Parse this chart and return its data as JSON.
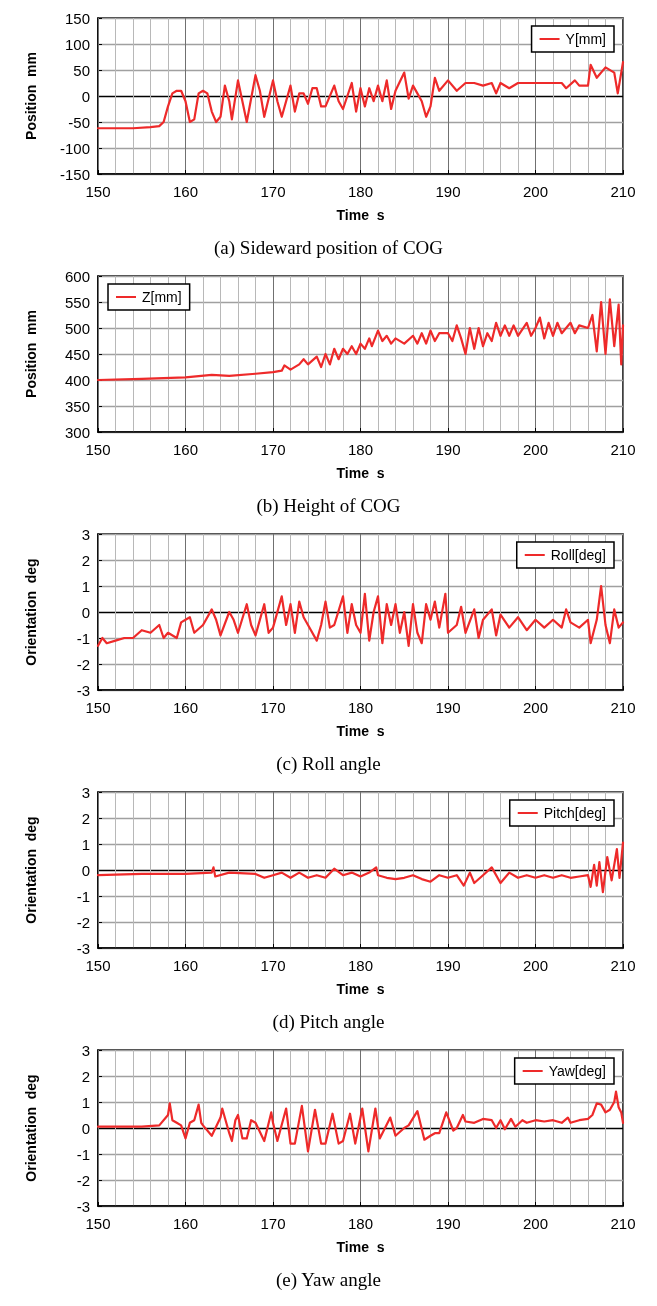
{
  "chart_data": [
    {
      "type": "line",
      "title": "(a) Sideward position of COG",
      "xlabel": "Time  s",
      "ylabel": "Position  mm",
      "xlim": [
        150,
        210
      ],
      "xticks": [
        150,
        160,
        170,
        180,
        190,
        200,
        210
      ],
      "ylim": [
        -150,
        150
      ],
      "yticks": [
        -150,
        -100,
        -50,
        0,
        50,
        100,
        150
      ],
      "grid": true,
      "legend": "top right",
      "marker": "none",
      "line_style": "solid",
      "series": [
        {
          "name": "Y[mm]",
          "color": "#ee2a2a",
          "x": [
            150,
            152,
            154,
            156,
            157,
            157.5,
            158,
            158.5,
            159,
            159.5,
            160,
            160.5,
            161,
            161.5,
            162,
            162.5,
            163,
            163.5,
            164,
            164.5,
            165,
            165.3,
            166,
            166.5,
            167,
            168,
            168.5,
            169,
            170,
            170.5,
            171,
            172,
            172.5,
            173,
            173.5,
            174,
            174.5,
            175,
            175.5,
            176,
            177,
            177.5,
            178,
            179,
            179.5,
            180,
            180.5,
            181,
            181.5,
            182,
            182.5,
            183,
            183.5,
            184,
            185,
            185.5,
            186,
            186.5,
            187,
            187.5,
            188,
            188.5,
            189,
            190,
            191,
            192,
            193,
            194,
            195,
            195.5,
            196,
            197,
            198,
            200,
            201,
            203,
            203.5,
            204.5,
            205,
            206,
            206.3,
            207,
            208,
            209,
            209.4,
            210
          ],
          "values": [
            -62,
            -62,
            -62,
            -60,
            -58,
            -50,
            -20,
            5,
            10,
            10,
            -10,
            -50,
            -45,
            5,
            10,
            5,
            -30,
            -50,
            -40,
            20,
            -10,
            -45,
            30,
            -10,
            -50,
            40,
            10,
            -40,
            30,
            -10,
            -40,
            20,
            -30,
            5,
            5,
            -15,
            15,
            15,
            -20,
            -20,
            20,
            -10,
            -25,
            25,
            -30,
            15,
            -20,
            15,
            -10,
            20,
            -10,
            30,
            -25,
            10,
            45,
            -5,
            20,
            5,
            -10,
            -40,
            -20,
            35,
            10,
            30,
            10,
            25,
            25,
            20,
            25,
            5,
            25,
            15,
            25,
            25,
            25,
            25,
            15,
            30,
            20,
            20,
            60,
            35,
            55,
            45,
            5,
            65
          ]
        }
      ]
    },
    {
      "type": "line",
      "title": "(b) Height of COG",
      "xlabel": "Time  s",
      "ylabel": "Position  mm",
      "xlim": [
        150,
        210
      ],
      "xticks": [
        150,
        160,
        170,
        180,
        190,
        200,
        210
      ],
      "ylim": [
        300,
        600
      ],
      "yticks": [
        300,
        350,
        400,
        450,
        500,
        550,
        600
      ],
      "grid": true,
      "legend": "top left",
      "marker": "none",
      "line_style": "solid",
      "series": [
        {
          "name": "Z[mm]",
          "color": "#ee2a2a",
          "x": [
            150,
            155,
            160,
            163,
            165,
            168,
            170,
            171,
            171.3,
            172,
            173,
            173.5,
            174,
            175,
            175.5,
            176,
            176.5,
            177,
            177.5,
            178,
            178.5,
            179,
            179.5,
            180,
            180.5,
            181,
            181.3,
            182,
            182.5,
            183,
            183.5,
            184,
            185,
            186,
            186.5,
            187,
            187.5,
            188,
            188.5,
            189,
            190,
            190.5,
            191,
            191.5,
            192,
            192.5,
            193,
            193.5,
            194,
            194.5,
            195,
            195.5,
            196,
            196.5,
            197,
            197.5,
            198,
            199,
            199.5,
            200,
            200.5,
            201,
            201.5,
            202,
            202.5,
            203,
            204,
            204.5,
            205,
            206,
            206.5,
            207,
            207.5,
            208,
            208.5,
            209,
            209.5,
            209.8,
            210
          ],
          "values": [
            400,
            402,
            405,
            410,
            408,
            412,
            415,
            418,
            428,
            420,
            430,
            440,
            430,
            445,
            425,
            450,
            430,
            460,
            440,
            460,
            450,
            465,
            450,
            470,
            460,
            480,
            465,
            495,
            475,
            485,
            470,
            480,
            470,
            485,
            470,
            490,
            470,
            495,
            475,
            490,
            490,
            475,
            505,
            480,
            450,
            500,
            460,
            500,
            465,
            490,
            475,
            510,
            485,
            505,
            485,
            505,
            485,
            510,
            485,
            500,
            520,
            480,
            510,
            485,
            510,
            490,
            510,
            490,
            505,
            500,
            525,
            455,
            550,
            450,
            555,
            465,
            545,
            430,
            505
          ]
        }
      ]
    },
    {
      "type": "line",
      "title": "(c) Roll angle",
      "xlabel": "Time  s",
      "ylabel": "Orientation  deg",
      "xlim": [
        150,
        210
      ],
      "xticks": [
        150,
        160,
        170,
        180,
        190,
        200,
        210
      ],
      "ylim": [
        -3,
        3
      ],
      "yticks": [
        -3,
        -2,
        -1,
        0,
        1,
        2,
        3
      ],
      "grid": true,
      "legend": "top right",
      "marker": "none",
      "line_style": "solid",
      "series": [
        {
          "name": "Roll[deg]",
          "color": "#ee2a2a",
          "x": [
            150,
            150.5,
            151,
            152,
            153,
            154,
            155,
            156,
            157,
            157.5,
            158,
            159,
            159.5,
            160,
            160.5,
            161,
            162,
            163,
            163.5,
            164,
            165,
            165.5,
            166,
            167,
            167.5,
            168,
            169,
            169.5,
            170,
            171,
            171.5,
            172,
            172.5,
            173,
            173.5,
            174,
            175,
            175.5,
            176,
            176.5,
            177,
            178,
            178.5,
            179,
            179.5,
            180,
            180.5,
            181,
            181.5,
            182,
            182.5,
            183,
            183.5,
            184,
            184.5,
            185,
            185.5,
            186,
            186.5,
            187,
            187.5,
            188,
            188.5,
            189,
            189.7,
            190,
            191,
            191.5,
            192,
            193,
            193.5,
            194,
            195,
            195.5,
            196,
            197,
            198,
            199,
            200,
            201,
            202,
            203,
            203.5,
            204,
            205,
            206,
            206.3,
            207,
            207.5,
            208,
            208.5,
            209,
            209.5,
            210
          ],
          "values": [
            -1.3,
            -1.0,
            -1.2,
            -1.1,
            -1.0,
            -1.0,
            -0.7,
            -0.8,
            -0.5,
            -1.0,
            -0.8,
            -1.0,
            -0.4,
            -0.3,
            -0.2,
            -0.8,
            -0.5,
            0.1,
            -0.3,
            -0.9,
            0.0,
            -0.3,
            -0.8,
            0.3,
            -0.5,
            -0.9,
            0.3,
            -0.8,
            -0.6,
            0.6,
            -0.5,
            0.3,
            -0.8,
            0.4,
            -0.2,
            -0.5,
            -1.1,
            -0.5,
            0.4,
            -0.6,
            -0.5,
            0.6,
            -0.8,
            0.3,
            -0.5,
            -0.8,
            0.7,
            -1.1,
            0.0,
            0.6,
            -1.2,
            0.3,
            -0.5,
            0.3,
            -0.8,
            0.0,
            -1.3,
            0.3,
            -0.8,
            -1.2,
            0.3,
            -0.3,
            0.4,
            -0.6,
            0.7,
            -0.8,
            -0.5,
            0.2,
            -0.8,
            0.1,
            -1.0,
            -0.3,
            0.1,
            -0.9,
            -0.1,
            -0.6,
            -0.2,
            -0.7,
            -0.3,
            -0.6,
            -0.3,
            -0.6,
            0.1,
            -0.4,
            -0.6,
            -0.3,
            -1.2,
            -0.3,
            1.0,
            -0.5,
            -1.2,
            0.1,
            -0.6,
            -0.4
          ]
        }
      ]
    },
    {
      "type": "line",
      "title": "(d) Pitch angle",
      "xlabel": "Time  s",
      "ylabel": "Orientation  deg",
      "xlim": [
        150,
        210
      ],
      "xticks": [
        150,
        160,
        170,
        180,
        190,
        200,
        210
      ],
      "ylim": [
        -3,
        3
      ],
      "yticks": [
        -3,
        -2,
        -1,
        0,
        1,
        2,
        3
      ],
      "grid": true,
      "legend": "top right",
      "marker": "none",
      "line_style": "solid",
      "series": [
        {
          "name": "Pitch[deg]",
          "color": "#ee2a2a",
          "x": [
            150,
            155,
            160,
            163,
            163.2,
            163.4,
            165,
            168,
            169,
            170,
            171,
            172,
            173,
            174,
            175,
            176,
            177,
            178,
            179,
            180,
            181,
            181.8,
            182,
            183,
            184,
            185,
            186,
            187,
            188,
            189,
            190,
            191,
            191.8,
            192.5,
            193,
            194,
            195,
            196,
            197,
            198,
            199,
            200,
            201,
            202,
            203,
            204,
            205,
            206,
            206.3,
            206.7,
            207,
            207.3,
            207.7,
            208.2,
            208.7,
            209.3,
            209.6,
            210
          ],
          "values": [
            -0.2,
            -0.15,
            -0.15,
            -0.1,
            0.1,
            -0.25,
            -0.1,
            -0.15,
            -0.3,
            -0.2,
            -0.1,
            -0.3,
            -0.1,
            -0.3,
            -0.2,
            -0.3,
            0.05,
            -0.2,
            -0.1,
            -0.25,
            -0.1,
            0.1,
            -0.2,
            -0.3,
            -0.35,
            -0.3,
            -0.2,
            -0.35,
            -0.45,
            -0.2,
            -0.3,
            -0.2,
            -0.6,
            -0.1,
            -0.5,
            -0.2,
            0.1,
            -0.5,
            -0.1,
            -0.3,
            -0.2,
            -0.3,
            -0.2,
            -0.3,
            -0.2,
            -0.3,
            -0.25,
            -0.2,
            -0.65,
            0.2,
            -0.6,
            0.3,
            -0.85,
            0.5,
            -0.4,
            0.8,
            -0.3,
            1.05
          ]
        }
      ]
    },
    {
      "type": "line",
      "title": "(e) Yaw angle",
      "xlabel": "Time  s",
      "ylabel": "Orientation  deg",
      "xlim": [
        150,
        210
      ],
      "xticks": [
        150,
        160,
        170,
        180,
        190,
        200,
        210
      ],
      "ylim": [
        -3,
        3
      ],
      "yticks": [
        -3,
        -2,
        -1,
        0,
        1,
        2,
        3
      ],
      "grid": true,
      "legend": "top right",
      "marker": "none",
      "line_style": "solid",
      "series": [
        {
          "name": "Yaw[deg]",
          "color": "#ee2a2a",
          "x": [
            150,
            155,
            157,
            158,
            158.2,
            158.5,
            159,
            159.5,
            160,
            160.5,
            161,
            161.5,
            161.8,
            162,
            163,
            164,
            164.2,
            165,
            165.3,
            165.7,
            166,
            166.5,
            167,
            167.5,
            168,
            169,
            169.8,
            170,
            170.5,
            171.5,
            172,
            172.5,
            173.3,
            174,
            174.8,
            175.5,
            176,
            176.8,
            177.5,
            178,
            178.8,
            179.4,
            180.2,
            180.9,
            181.7,
            182.2,
            183.4,
            184,
            185,
            185.5,
            186.5,
            187.3,
            188,
            188.5,
            189,
            189.8,
            190.6,
            191,
            191.7,
            192,
            193,
            194,
            195,
            195.5,
            196,
            196.5,
            197.2,
            197.7,
            198.5,
            199,
            200,
            201,
            202,
            203,
            203.7,
            204,
            205,
            206,
            206.5,
            207,
            207.5,
            208,
            208.5,
            209,
            209.2,
            209.5,
            209.8,
            210
          ],
          "values": [
            0.05,
            0.05,
            0.1,
            0.5,
            0.95,
            0.3,
            0.2,
            0.1,
            -0.4,
            0.2,
            0.3,
            0.9,
            0.2,
            0.1,
            -0.3,
            0.4,
            0.75,
            -0.2,
            -0.5,
            0.3,
            0.5,
            -0.4,
            -0.4,
            0.3,
            0.2,
            -0.5,
            0.6,
            0.2,
            -0.5,
            0.75,
            -0.6,
            -0.6,
            0.85,
            -0.9,
            0.7,
            -0.6,
            -0.6,
            0.55,
            -0.6,
            -0.5,
            0.55,
            -0.6,
            0.75,
            -0.9,
            0.75,
            -0.4,
            0.4,
            -0.3,
            0.0,
            0.1,
            0.65,
            -0.45,
            -0.3,
            -0.2,
            -0.2,
            0.6,
            -0.1,
            0.0,
            0.5,
            0.25,
            0.2,
            0.35,
            0.3,
            0.0,
            0.3,
            -0.05,
            0.35,
            0.05,
            0.3,
            0.2,
            0.3,
            0.25,
            0.3,
            0.2,
            0.4,
            0.2,
            0.3,
            0.35,
            0.5,
            0.95,
            0.9,
            0.6,
            0.7,
            1.0,
            1.4,
            0.8,
            0.6,
            0.2
          ]
        }
      ]
    }
  ]
}
